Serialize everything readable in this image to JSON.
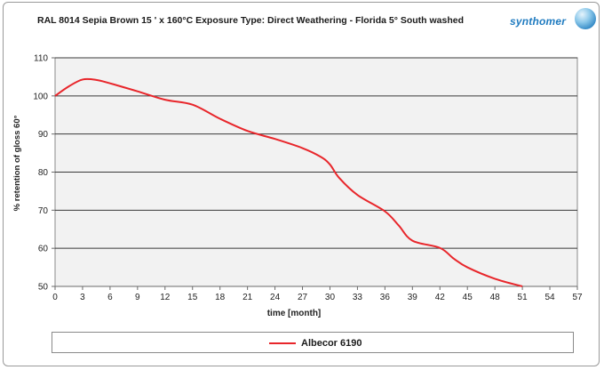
{
  "header": {
    "title": "RAL 8014 Sepia Brown  15 ' x 160°C     Exposure Type: Direct Weathering - Florida 5° South  washed",
    "logo_text": "synthomer"
  },
  "colors": {
    "series": "#e8262b",
    "plot_bg": "#f2f2f2",
    "grid": "#3a3a3a",
    "logo": "#1f7bc0"
  },
  "chart_data": {
    "type": "line",
    "title": "RAL 8014 Sepia Brown  15 ' x 160°C     Exposure Type: Direct Weathering - Florida 5° South  washed",
    "xlabel": "time [month]",
    "ylabel": "% retention of gloss 60°",
    "xlim": [
      0,
      57
    ],
    "ylim": [
      50,
      110
    ],
    "xticks": [
      0,
      3,
      6,
      9,
      12,
      15,
      18,
      21,
      24,
      27,
      30,
      33,
      36,
      39,
      42,
      45,
      48,
      51,
      54,
      57
    ],
    "yticks": [
      50,
      60,
      70,
      80,
      90,
      100,
      110
    ],
    "grid": "horizontal",
    "legend_position": "bottom",
    "series": [
      {
        "name": "Albecor 6190",
        "x": [
          0,
          1.5,
          3,
          4.5,
          6,
          9,
          12,
          15,
          18,
          21,
          24,
          27,
          29,
          30,
          31,
          33,
          36,
          37.5,
          39,
          42,
          43.5,
          45,
          48,
          51
        ],
        "y": [
          100,
          102.5,
          104.3,
          104.2,
          103.3,
          101.2,
          99,
          97.7,
          94,
          90.8,
          88.7,
          86.3,
          84,
          82,
          78.5,
          74,
          69.7,
          66,
          62,
          60.1,
          57.3,
          55,
          52,
          50
        ]
      }
    ]
  }
}
